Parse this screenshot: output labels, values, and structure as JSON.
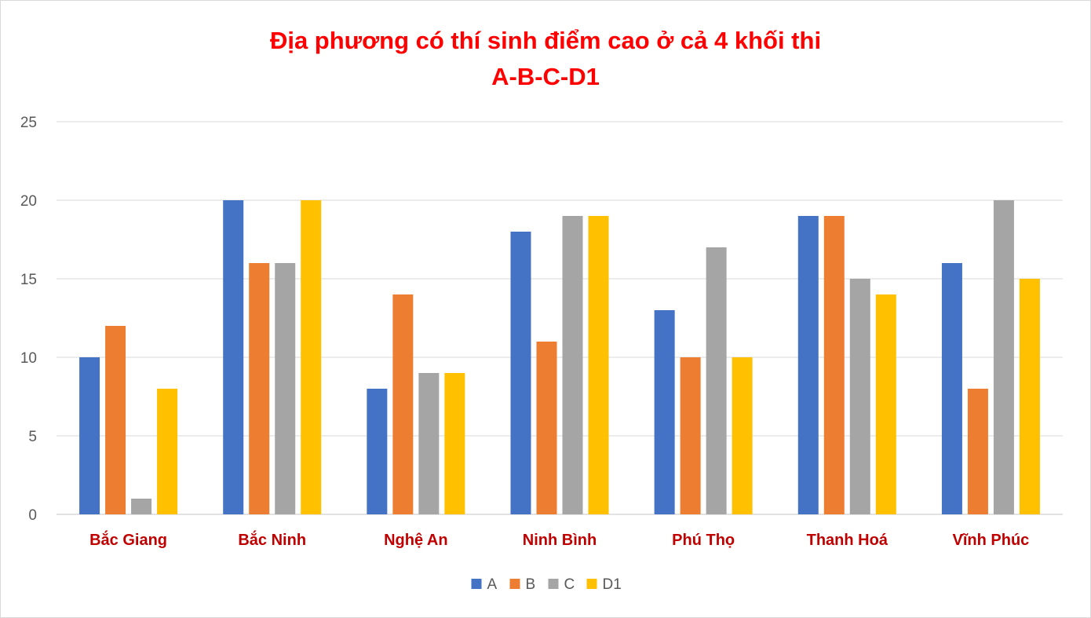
{
  "chart_data": {
    "type": "bar",
    "title": "Địa phương có thí sinh điểm cao ở cả 4 khối thi",
    "subtitle": "A-B-C-D1",
    "categories": [
      "Bắc Giang",
      "Bắc Ninh",
      "Nghệ An",
      "Ninh Bình",
      "Phú Thọ",
      "Thanh Hoá",
      "Vĩnh Phúc"
    ],
    "series": [
      {
        "name": "A",
        "color": "#4472c4",
        "values": [
          10,
          20,
          8,
          18,
          13,
          19,
          16
        ]
      },
      {
        "name": "B",
        "color": "#ed7d31",
        "values": [
          12,
          16,
          14,
          11,
          10,
          19,
          8
        ]
      },
      {
        "name": "C",
        "color": "#a5a5a5",
        "values": [
          1,
          16,
          9,
          19,
          17,
          15,
          20
        ]
      },
      {
        "name": "D1",
        "color": "#ffc000",
        "values": [
          8,
          20,
          9,
          19,
          10,
          14,
          15
        ]
      }
    ],
    "yticks": [
      0,
      5,
      10,
      15,
      20,
      25
    ],
    "ylim": [
      0,
      25
    ],
    "grid": true,
    "legend": "bottom-center",
    "title_color": "#ff0000",
    "category_label_color": "#c00000"
  }
}
